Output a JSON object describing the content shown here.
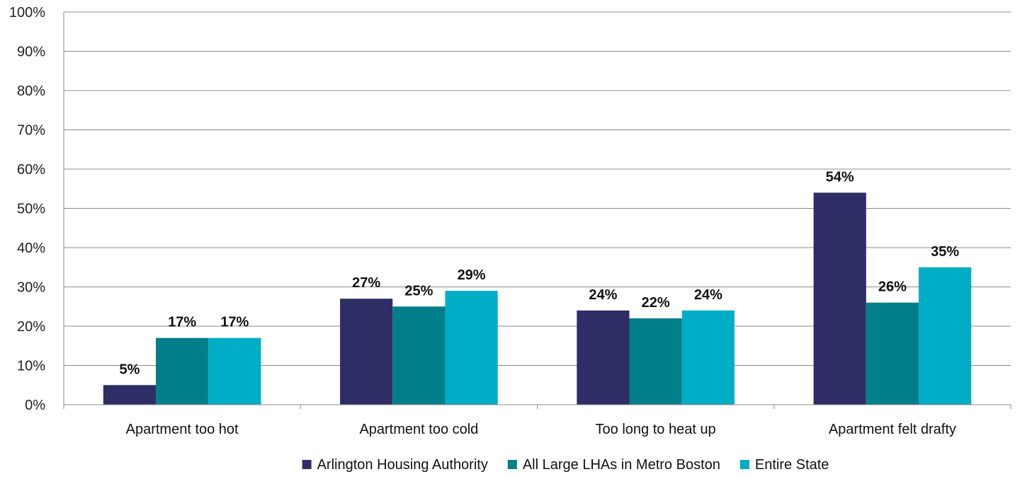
{
  "chart_data": {
    "type": "bar",
    "title": "",
    "xlabel": "",
    "ylabel": "",
    "categories": [
      "Apartment too hot",
      "Apartment too cold",
      "Too long to heat up",
      "Apartment felt drafty"
    ],
    "series": [
      {
        "name": "Arlington Housing Authority",
        "values": [
          5,
          27,
          24,
          54
        ],
        "color": "#2e2d66"
      },
      {
        "name": "All Large LHAs in Metro Boston",
        "values": [
          17,
          25,
          22,
          26
        ],
        "color": "#007f8a"
      },
      {
        "name": "Entire State",
        "values": [
          17,
          29,
          24,
          35
        ],
        "color": "#00adc6"
      }
    ],
    "ylim": [
      0,
      100
    ],
    "yticks": [
      "0%",
      "10%",
      "20%",
      "30%",
      "40%",
      "50%",
      "60%",
      "70%",
      "80%",
      "90%",
      "100%"
    ],
    "value_suffix": "%",
    "grid": true,
    "legend_position": "bottom"
  }
}
